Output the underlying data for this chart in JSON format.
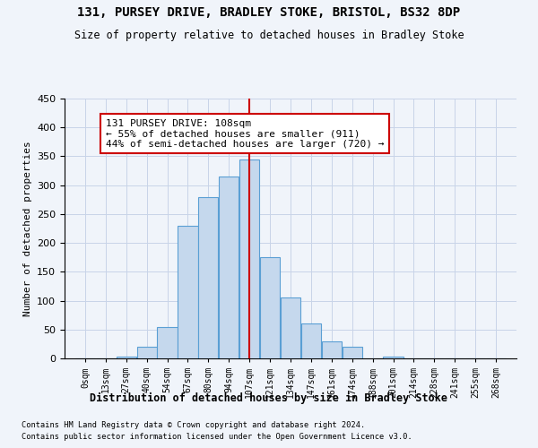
{
  "title1": "131, PURSEY DRIVE, BRADLEY STOKE, BRISTOL, BS32 8DP",
  "title2": "Size of property relative to detached houses in Bradley Stoke",
  "xlabel": "Distribution of detached houses by size in Bradley Stoke",
  "ylabel": "Number of detached properties",
  "footnote1": "Contains HM Land Registry data © Crown copyright and database right 2024.",
  "footnote2": "Contains public sector information licensed under the Open Government Licence v3.0.",
  "bar_labels": [
    "0sqm",
    "13sqm",
    "27sqm",
    "40sqm",
    "54sqm",
    "67sqm",
    "80sqm",
    "94sqm",
    "107sqm",
    "121sqm",
    "134sqm",
    "147sqm",
    "161sqm",
    "174sqm",
    "188sqm",
    "201sqm",
    "214sqm",
    "228sqm",
    "241sqm",
    "255sqm",
    "268sqm"
  ],
  "bar_values": [
    0,
    0,
    3,
    20,
    55,
    230,
    280,
    315,
    345,
    175,
    105,
    60,
    30,
    20,
    0,
    3,
    0,
    0,
    0,
    0,
    0
  ],
  "bar_color": "#c5d8ed",
  "bar_edge_color": "#5a9fd4",
  "property_line_color": "#cc0000",
  "annotation_text": "131 PURSEY DRIVE: 108sqm\n← 55% of detached houses are smaller (911)\n44% of semi-detached houses are larger (720) →",
  "annotation_box_color": "#ffffff",
  "annotation_box_edge": "#cc0000",
  "ylim": [
    0,
    450
  ],
  "bin_width": 13.35
}
